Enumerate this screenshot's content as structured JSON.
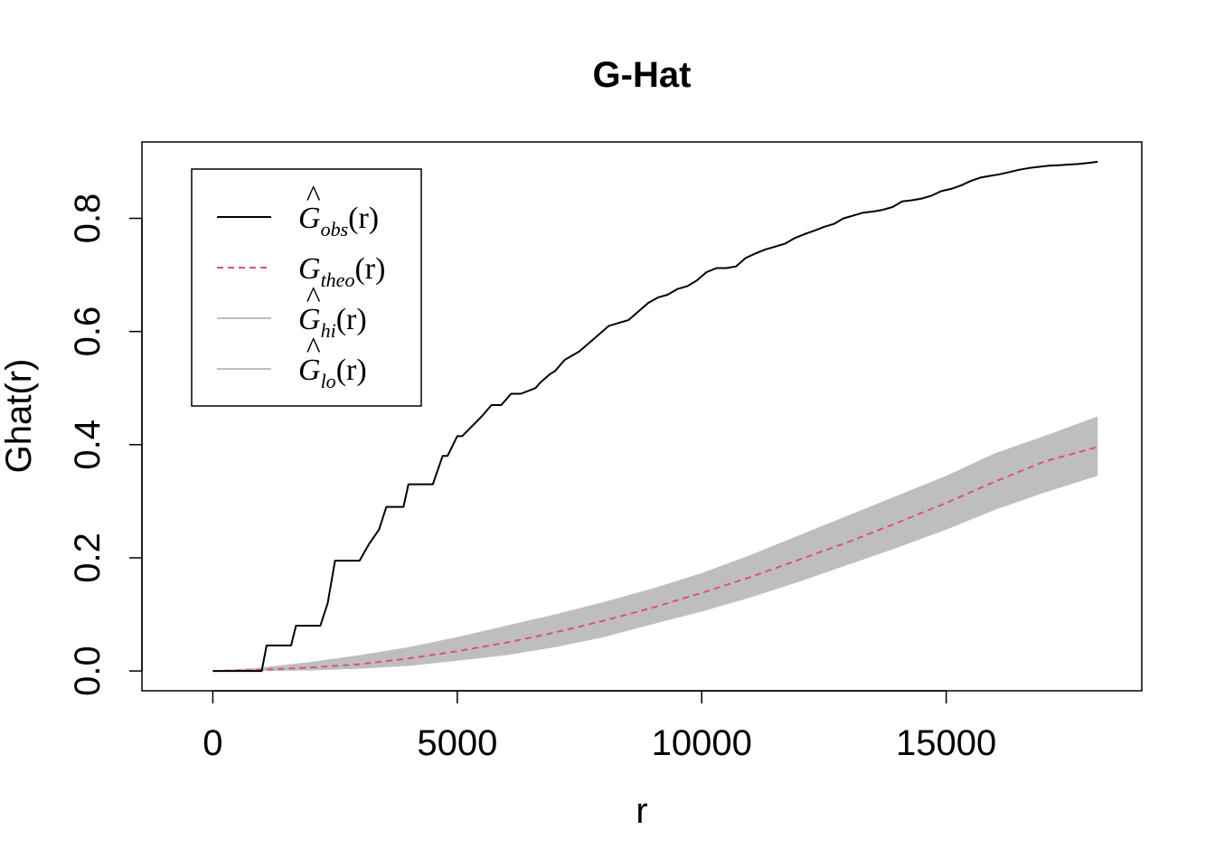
{
  "chart_data": {
    "type": "line",
    "title": "G-Hat",
    "xlabel": "r",
    "ylabel": "Ghat(r)",
    "xlim": [
      -1450,
      19000
    ],
    "ylim": [
      -0.035,
      0.935
    ],
    "x_ticks": [
      0,
      5000,
      10000,
      15000
    ],
    "x_tick_labels": [
      "0",
      "5000",
      "10000",
      "15000"
    ],
    "y_ticks": [
      0.0,
      0.2,
      0.4,
      0.6,
      0.8
    ],
    "y_tick_labels": [
      "0.0",
      "0.2",
      "0.4",
      "0.6",
      "0.8"
    ],
    "grid": false,
    "legend_position": "top-left",
    "colors": {
      "obs": "#000000",
      "theo": "#DF536B",
      "envelope": "#BEBEBE"
    },
    "legend": [
      {
        "base": "G",
        "hat": true,
        "sub": "obs",
        "suffix": "(r)",
        "style": "solid",
        "color": "#000000"
      },
      {
        "base": "G",
        "hat": false,
        "sub": "theo",
        "suffix": "(r)",
        "style": "dashed",
        "color": "#DF536B"
      },
      {
        "base": "G",
        "hat": true,
        "sub": "hi",
        "suffix": "(r)",
        "style": "solid",
        "color": "#BEBEBE"
      },
      {
        "base": "G",
        "hat": true,
        "sub": "lo",
        "suffix": "(r)",
        "style": "solid",
        "color": "#BEBEBE"
      }
    ],
    "series": [
      {
        "name": "obs",
        "step": true,
        "x": [
          0,
          1000,
          1100,
          1600,
          1700,
          2200,
          2350,
          2500,
          3000,
          3200,
          3400,
          3550,
          3600,
          3900,
          4000,
          4500,
          4700,
          4800,
          5000,
          5100,
          5500,
          5700,
          5900,
          6100,
          6300,
          6600,
          6700,
          6900,
          7000,
          7200,
          7400,
          7500,
          7700,
          7900,
          8100,
          8300,
          8500,
          8700,
          8900,
          9100,
          9300,
          9500,
          9700,
          9900,
          10100,
          10300,
          10500,
          10700,
          10900,
          11100,
          11300,
          11500,
          11700,
          11900,
          12100,
          12300,
          12500,
          12700,
          12900,
          13100,
          13300,
          13500,
          13700,
          13900,
          14100,
          14300,
          14500,
          14700,
          14900,
          15100,
          15300,
          15500,
          15700,
          15900,
          16100,
          16300,
          16500,
          16700,
          16900,
          17100,
          17300,
          17500,
          17700,
          17900,
          18100
        ],
        "y": [
          0.0,
          0.0,
          0.045,
          0.045,
          0.08,
          0.08,
          0.12,
          0.195,
          0.195,
          0.225,
          0.25,
          0.29,
          0.29,
          0.29,
          0.33,
          0.33,
          0.38,
          0.38,
          0.415,
          0.415,
          0.45,
          0.47,
          0.47,
          0.49,
          0.49,
          0.5,
          0.51,
          0.525,
          0.53,
          0.55,
          0.56,
          0.565,
          0.58,
          0.595,
          0.61,
          0.615,
          0.62,
          0.635,
          0.65,
          0.66,
          0.665,
          0.675,
          0.68,
          0.69,
          0.705,
          0.712,
          0.712,
          0.715,
          0.73,
          0.738,
          0.745,
          0.75,
          0.755,
          0.765,
          0.772,
          0.778,
          0.785,
          0.79,
          0.8,
          0.805,
          0.81,
          0.812,
          0.815,
          0.82,
          0.83,
          0.832,
          0.835,
          0.84,
          0.848,
          0.852,
          0.858,
          0.866,
          0.872,
          0.875,
          0.878,
          0.882,
          0.886,
          0.889,
          0.891,
          0.893,
          0.894,
          0.895,
          0.896,
          0.898,
          0.9
        ]
      },
      {
        "name": "theo",
        "x": [
          0,
          1000,
          2000,
          3000,
          4000,
          5000,
          6000,
          7000,
          8000,
          9000,
          10000,
          11000,
          12000,
          13000,
          14000,
          15000,
          16000,
          17000,
          18100
        ],
        "y": [
          0.0,
          0.002,
          0.006,
          0.012,
          0.022,
          0.035,
          0.05,
          0.068,
          0.089,
          0.112,
          0.138,
          0.166,
          0.197,
          0.228,
          0.262,
          0.297,
          0.335,
          0.37,
          0.396
        ]
      },
      {
        "name": "hi",
        "x": [
          0,
          1000,
          2000,
          3000,
          4000,
          5000,
          6000,
          7000,
          8000,
          9000,
          10000,
          11000,
          12000,
          13000,
          14000,
          15000,
          16000,
          17000,
          18100
        ],
        "y": [
          0.0,
          0.006,
          0.016,
          0.028,
          0.042,
          0.06,
          0.08,
          0.1,
          0.122,
          0.146,
          0.173,
          0.205,
          0.24,
          0.275,
          0.31,
          0.345,
          0.385,
          0.415,
          0.45
        ]
      },
      {
        "name": "lo",
        "x": [
          0,
          1000,
          2000,
          3000,
          4000,
          5000,
          6000,
          7000,
          8000,
          9000,
          10000,
          11000,
          12000,
          13000,
          14000,
          15000,
          16000,
          17000,
          18100
        ],
        "y": [
          0.0,
          0.0,
          0.001,
          0.004,
          0.009,
          0.018,
          0.028,
          0.042,
          0.06,
          0.083,
          0.105,
          0.13,
          0.158,
          0.188,
          0.218,
          0.25,
          0.285,
          0.315,
          0.345
        ]
      }
    ]
  }
}
